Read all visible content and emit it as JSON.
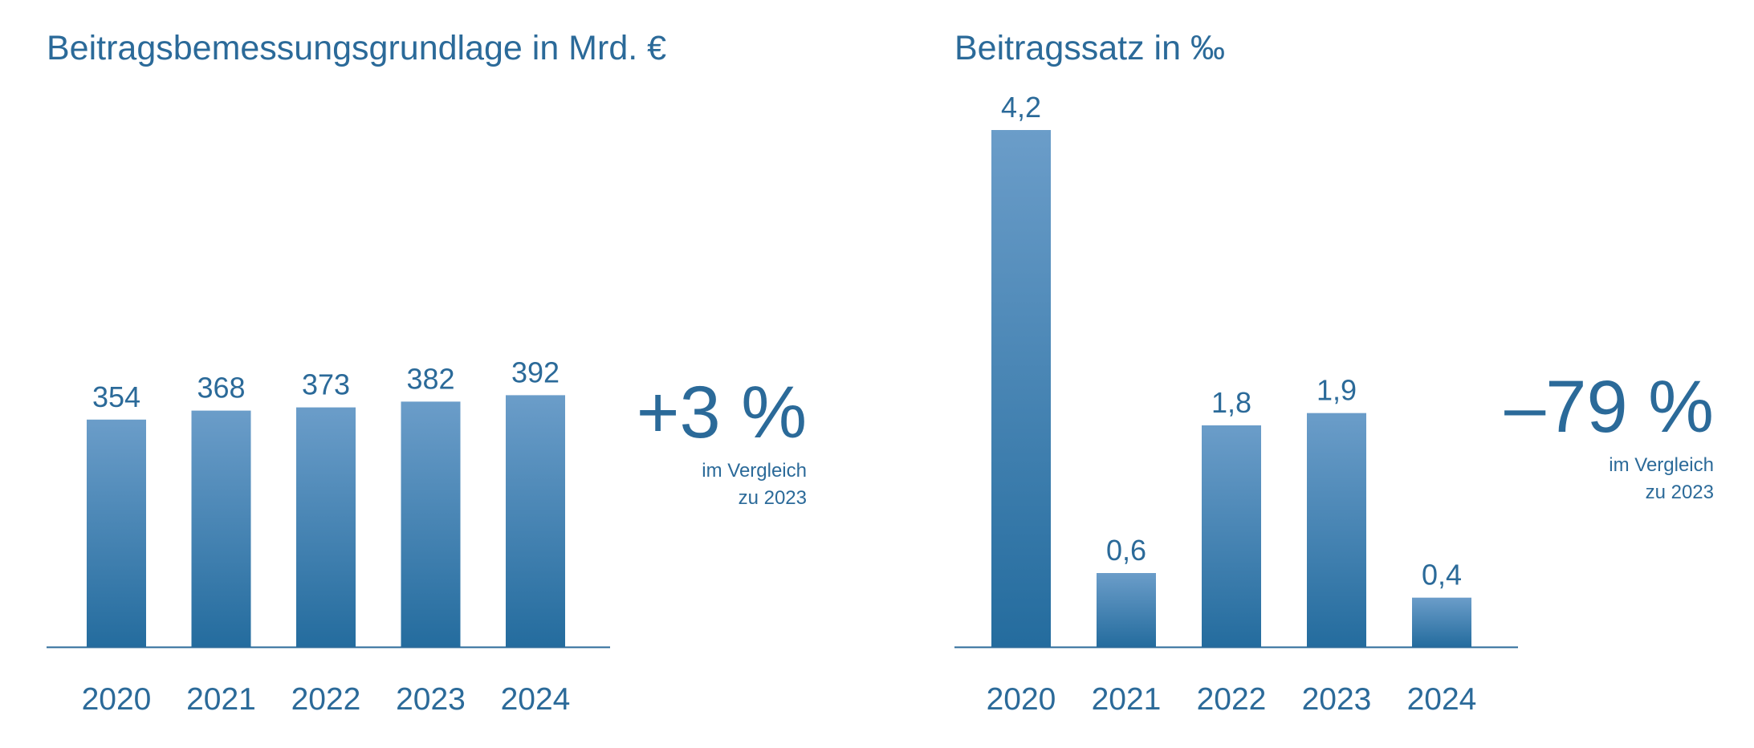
{
  "colors": {
    "text": "#2b6a99",
    "bar_top": "#6b9dc9",
    "bar_bottom": "#246c9e",
    "axis": "#2b6a99"
  },
  "left": {
    "change_value": "+3 %",
    "change_note_line1": "im Vergleich",
    "change_note_line2": "zu 2023"
  },
  "right": {
    "change_value": "–79 %",
    "change_note_line1": "im Vergleich",
    "change_note_line2": "zu 2023"
  },
  "chart_data": [
    {
      "type": "bar",
      "title": "Beitragsbemessungsgrundlage in Mrd. €",
      "categories": [
        "2020",
        "2021",
        "2022",
        "2023",
        "2024"
      ],
      "values": [
        354,
        368,
        373,
        382,
        392
      ],
      "value_labels": [
        "354",
        "368",
        "373",
        "382",
        "392"
      ],
      "xlabel": "",
      "ylabel": "",
      "ylim": [
        0,
        800
      ],
      "grid": false
    },
    {
      "type": "bar",
      "title": "Beitragssatz in ‰",
      "categories": [
        "2020",
        "2021",
        "2022",
        "2023",
        "2024"
      ],
      "values": [
        4.2,
        0.6,
        1.8,
        1.9,
        0.4
      ],
      "value_labels": [
        "4,2",
        "0,6",
        "1,8",
        "1,9",
        "0,4"
      ],
      "xlabel": "",
      "ylabel": "",
      "ylim": [
        0,
        4.2
      ],
      "grid": false
    }
  ]
}
